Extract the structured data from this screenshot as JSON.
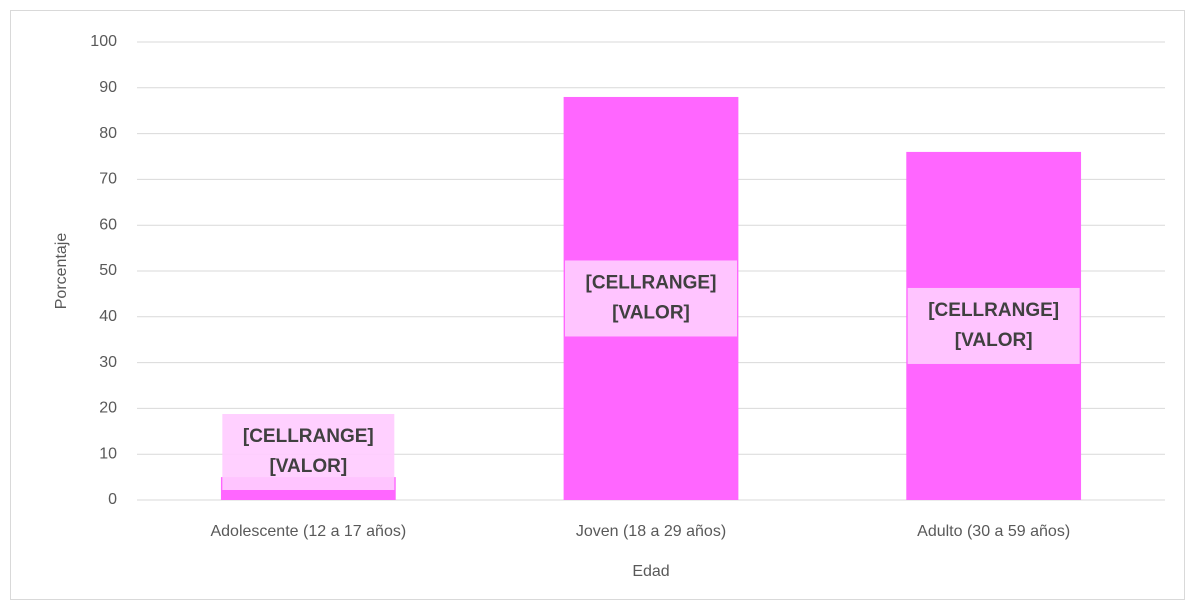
{
  "chart_data": {
    "type": "bar",
    "categories": [
      "Adolescente (12 a 17 años)",
      "Joven (18 a 29 años)",
      "Adulto (30 a 59 años)"
    ],
    "values": [
      5,
      88,
      76
    ],
    "data_labels": [
      [
        "[CELLRANGE]",
        "[VALOR]"
      ],
      [
        "[CELLRANGE]",
        "[VALOR]"
      ],
      [
        "[CELLRANGE]",
        "[VALOR]"
      ]
    ],
    "color": "#ff66ff",
    "xlabel": "Edad",
    "ylabel": "Porcentaje",
    "ylim": [
      0,
      100
    ],
    "yticks": [
      0,
      10,
      20,
      30,
      40,
      50,
      60,
      70,
      80,
      90,
      100
    ],
    "grid": true
  }
}
